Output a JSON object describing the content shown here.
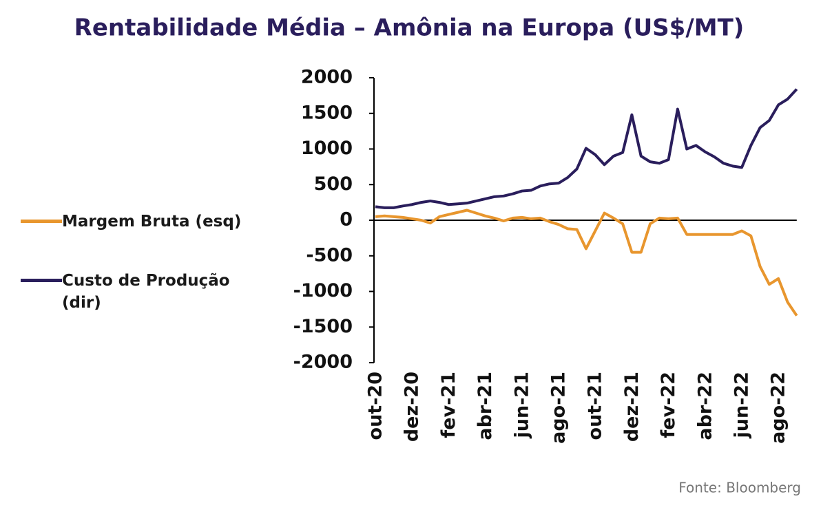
{
  "chart_data": {
    "type": "line",
    "title": "Rentabilidade Média – Amônia na Europa (US$/MT)",
    "source": "Fonte: Bloomberg",
    "categories": [
      "out-20",
      null,
      null,
      null,
      "dez-20",
      null,
      null,
      null,
      "fev-21",
      null,
      null,
      null,
      "abr-21",
      null,
      null,
      null,
      "jun-21",
      null,
      null,
      null,
      "ago-21",
      null,
      null,
      null,
      "out-21",
      null,
      null,
      null,
      "dez-21",
      null,
      null,
      null,
      "fev-22",
      null,
      null,
      null,
      "abr-22",
      null,
      null,
      null,
      "jun-22",
      null,
      null,
      null,
      "ago-22",
      null,
      null
    ],
    "series": [
      {
        "name": "Margem Bruta (esq)",
        "color": "#e8962e",
        "values": [
          50,
          60,
          50,
          40,
          20,
          0,
          -40,
          50,
          80,
          110,
          140,
          100,
          60,
          30,
          -10,
          30,
          40,
          20,
          30,
          -20,
          -60,
          -120,
          -130,
          -400,
          -150,
          100,
          30,
          -50,
          -450,
          -450,
          -50,
          30,
          20,
          30,
          -200,
          -200,
          -200,
          -200,
          -200,
          -200,
          -150,
          -220,
          -650,
          -900,
          -820,
          -1150,
          -1340
        ]
      },
      {
        "name": "Custo de Produção (dir)",
        "color": "#2a1e5c",
        "values": [
          190,
          175,
          175,
          200,
          220,
          250,
          270,
          250,
          220,
          230,
          240,
          270,
          300,
          330,
          340,
          370,
          410,
          420,
          480,
          510,
          520,
          600,
          720,
          1010,
          920,
          780,
          900,
          950,
          1480,
          900,
          820,
          800,
          850,
          1560,
          1000,
          1050,
          960,
          890,
          800,
          760,
          740,
          1050,
          1300,
          1400,
          1620,
          1700,
          1840
        ]
      }
    ],
    "ylim": [
      -2000,
      2000
    ],
    "yticks": [
      -2000,
      -1500,
      -1000,
      -500,
      0,
      500,
      1000,
      1500,
      2000
    ]
  }
}
